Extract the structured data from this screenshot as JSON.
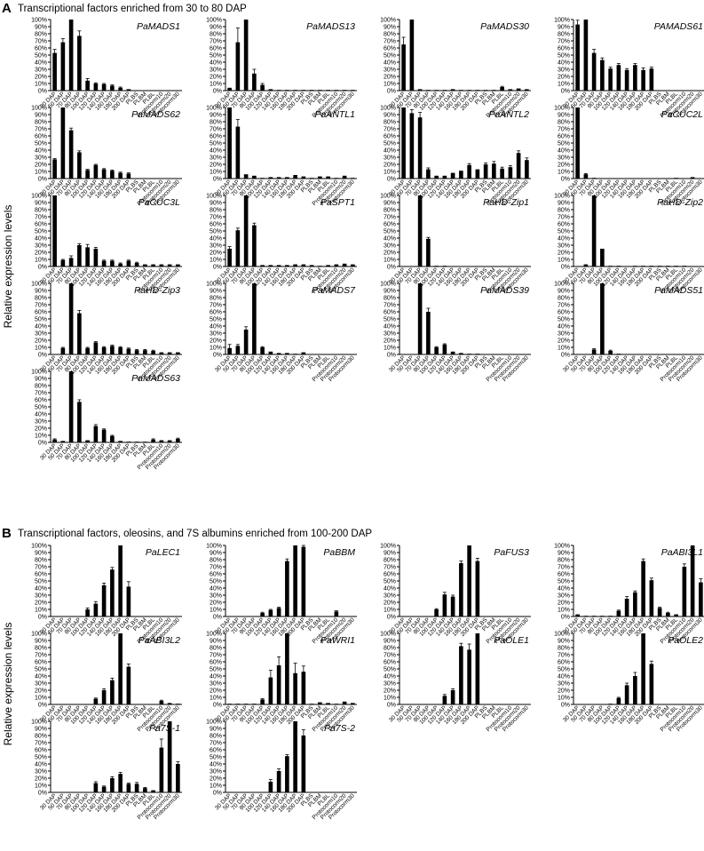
{
  "figure": {
    "y_axis_title": "Relative expression levels",
    "categories": [
      "30 DAP",
      "50 DAP",
      "70 DAP",
      "80 DAP",
      "100 DAP",
      "120 DAP",
      "140 DAP",
      "160 DAP",
      "180 DAP",
      "200 DAP",
      "PLBS",
      "PLBM",
      "PLBL",
      "Protocorm10",
      "Protocorm20",
      "Protocorm30"
    ],
    "y_ticks": [
      "0%",
      "10%",
      "20%",
      "30%",
      "40%",
      "50%",
      "60%",
      "70%",
      "80%",
      "90%",
      "100%"
    ],
    "ylim": [
      0,
      100
    ],
    "panels": [
      {
        "letter": "A",
        "title": "Transcriptional factors enriched from 30 to 80 DAP"
      },
      {
        "letter": "B",
        "title": "Transcriptional factors, oleosins, and 7S albumins enriched from 100-200 DAP"
      }
    ]
  },
  "chart_data": [
    {
      "type": "bar",
      "panel": "A",
      "title": "PaMADS1",
      "ylim": [
        0,
        100
      ],
      "values": [
        53,
        68,
        100,
        77,
        14,
        10,
        9,
        7,
        4,
        2,
        0,
        0,
        0,
        0,
        0,
        0
      ],
      "errors": [
        5,
        5,
        0,
        7,
        3,
        1,
        1,
        1,
        1,
        0,
        0,
        0,
        0,
        0,
        0,
        0
      ]
    },
    {
      "type": "bar",
      "panel": "A",
      "title": "PaMADS13",
      "ylim": [
        0,
        100
      ],
      "values": [
        4,
        68,
        100,
        24,
        8,
        2,
        1,
        1,
        1,
        1,
        1,
        1,
        1,
        1,
        1,
        1
      ],
      "errors": [
        0,
        20,
        0,
        6,
        2,
        0,
        0,
        0,
        0,
        0,
        0,
        0,
        0,
        0,
        0,
        0
      ]
    },
    {
      "type": "bar",
      "panel": "A",
      "title": "PaMADS30",
      "ylim": [
        0,
        100
      ],
      "values": [
        65,
        100,
        2,
        1,
        1,
        1,
        2,
        1,
        1,
        1,
        1,
        1,
        5,
        2,
        3,
        2
      ],
      "errors": [
        10,
        0,
        0,
        0,
        0,
        0,
        0,
        0,
        0,
        0,
        0,
        0,
        1,
        0,
        0,
        0
      ]
    },
    {
      "type": "bar",
      "panel": "A",
      "title": "PAMADS61",
      "ylim": [
        0,
        100
      ],
      "values": [
        93,
        100,
        53,
        43,
        31,
        36,
        29,
        36,
        29,
        31,
        0,
        0,
        0,
        0,
        0,
        0
      ],
      "errors": [
        6,
        0,
        5,
        3,
        2,
        2,
        2,
        2,
        3,
        2,
        0,
        0,
        0,
        0,
        0,
        0
      ]
    },
    {
      "type": "bar",
      "panel": "A",
      "title": "PaMADS62",
      "ylim": [
        0,
        100
      ],
      "values": [
        27,
        100,
        68,
        37,
        12,
        19,
        13,
        11,
        8,
        7,
        0,
        0,
        0,
        0,
        0,
        0
      ],
      "errors": [
        1,
        0,
        3,
        2,
        1,
        1,
        1,
        1,
        1,
        1,
        0,
        0,
        0,
        0,
        0,
        0
      ]
    },
    {
      "type": "bar",
      "panel": "A",
      "title": "PaANTL1",
      "ylim": [
        0,
        100
      ],
      "values": [
        100,
        73,
        6,
        4,
        1,
        2,
        2,
        2,
        5,
        3,
        1,
        3,
        3,
        1,
        4,
        1
      ],
      "errors": [
        0,
        10,
        0,
        0,
        0,
        0,
        0,
        0,
        0,
        0,
        0,
        0,
        0,
        0,
        0,
        0
      ]
    },
    {
      "type": "bar",
      "panel": "A",
      "title": "PaANTL2",
      "ylim": [
        0,
        100
      ],
      "values": [
        100,
        92,
        86,
        13,
        4,
        4,
        8,
        11,
        19,
        13,
        20,
        21,
        14,
        16,
        36,
        26
      ],
      "errors": [
        0,
        5,
        7,
        2,
        0,
        0,
        0,
        0,
        2,
        0,
        2,
        3,
        2,
        2,
        3,
        3
      ]
    },
    {
      "type": "bar",
      "panel": "A",
      "title": "PaCUC2L",
      "ylim": [
        0,
        100
      ],
      "values": [
        100,
        6,
        1,
        0,
        0,
        0,
        0,
        0,
        0,
        0,
        0,
        0,
        1,
        0,
        2,
        0
      ],
      "errors": [
        0,
        1,
        0,
        0,
        0,
        0,
        0,
        0,
        0,
        0,
        0,
        0,
        0,
        0,
        0,
        0
      ]
    },
    {
      "type": "bar",
      "panel": "A",
      "title": "PaCUC3L",
      "ylim": [
        0,
        100
      ],
      "values": [
        100,
        9,
        12,
        30,
        27,
        25,
        8,
        8,
        4,
        8,
        5,
        3,
        3,
        3,
        3,
        3
      ],
      "errors": [
        0,
        1,
        3,
        2,
        4,
        2,
        1,
        1,
        1,
        1,
        1,
        0,
        0,
        0,
        0,
        0
      ]
    },
    {
      "type": "bar",
      "panel": "A",
      "title": "PaSPT1",
      "ylim": [
        0,
        100
      ],
      "values": [
        25,
        51,
        100,
        58,
        2,
        2,
        2,
        2,
        3,
        3,
        2,
        1,
        2,
        3,
        4,
        3
      ],
      "errors": [
        3,
        3,
        0,
        3,
        0,
        0,
        0,
        0,
        0,
        0,
        0,
        0,
        0,
        0,
        0,
        0
      ]
    },
    {
      "type": "bar",
      "panel": "A",
      "title": "PaHD-Zip1",
      "ylim": [
        0,
        100
      ],
      "values": [
        0,
        0,
        100,
        39,
        1,
        1,
        0,
        0,
        0,
        0,
        0,
        0,
        0,
        0,
        0,
        0
      ],
      "errors": [
        0,
        0,
        0,
        2,
        0,
        0,
        0,
        0,
        0,
        0,
        0,
        0,
        0,
        0,
        0,
        0
      ]
    },
    {
      "type": "bar",
      "panel": "A",
      "title": "PaHD-Zip2",
      "ylim": [
        0,
        100
      ],
      "values": [
        0,
        3,
        100,
        25,
        1,
        1,
        0,
        1,
        1,
        1,
        1,
        1,
        1,
        1,
        0,
        0
      ],
      "errors": [
        0,
        0,
        0,
        0,
        0,
        0,
        0,
        0,
        0,
        0,
        0,
        0,
        0,
        0,
        0,
        0
      ]
    },
    {
      "type": "bar",
      "panel": "A",
      "title": "PaHD-Zip3",
      "ylim": [
        0,
        100
      ],
      "values": [
        0,
        9,
        100,
        58,
        9,
        17,
        10,
        12,
        10,
        8,
        6,
        6,
        5,
        3,
        3,
        3
      ],
      "errors": [
        0,
        1,
        0,
        4,
        1,
        1,
        1,
        1,
        1,
        1,
        1,
        1,
        1,
        0,
        0,
        0
      ]
    },
    {
      "type": "bar",
      "panel": "A",
      "title": "PaMADS7",
      "ylim": [
        0,
        100
      ],
      "values": [
        9,
        12,
        35,
        100,
        10,
        4,
        2,
        2,
        1,
        3,
        0,
        0,
        0,
        0,
        0,
        0
      ],
      "errors": [
        5,
        2,
        4,
        0,
        1,
        0,
        0,
        0,
        0,
        0,
        0,
        0,
        0,
        0,
        0,
        0
      ]
    },
    {
      "type": "bar",
      "panel": "A",
      "title": "PaMADS39",
      "ylim": [
        0,
        100
      ],
      "values": [
        0,
        0,
        100,
        60,
        10,
        14,
        4,
        2,
        1,
        1,
        0,
        0,
        0,
        0,
        0,
        0
      ],
      "errors": [
        0,
        0,
        0,
        5,
        1,
        1,
        0,
        0,
        0,
        0,
        0,
        0,
        0,
        0,
        0,
        0
      ]
    },
    {
      "type": "bar",
      "panel": "A",
      "title": "PaMADS51",
      "ylim": [
        0,
        100
      ],
      "values": [
        0,
        0,
        7,
        100,
        5,
        1,
        0,
        0,
        0,
        0,
        0,
        0,
        0,
        0,
        0,
        0
      ],
      "errors": [
        0,
        0,
        1,
        0,
        1,
        0,
        0,
        0,
        0,
        0,
        0,
        0,
        0,
        0,
        0,
        0
      ]
    },
    {
      "type": "bar",
      "panel": "A",
      "title": "PaMADS63",
      "ylim": [
        0,
        100
      ],
      "values": [
        4,
        2,
        100,
        57,
        3,
        23,
        18,
        9,
        2,
        1,
        1,
        1,
        4,
        3,
        3,
        5
      ],
      "errors": [
        1,
        0,
        0,
        3,
        0,
        2,
        1,
        1,
        0,
        0,
        0,
        0,
        1,
        0,
        0,
        1
      ]
    },
    {
      "type": "bar",
      "panel": "B",
      "title": "PaLEC1",
      "ylim": [
        0,
        100
      ],
      "values": [
        0,
        0,
        0,
        0,
        10,
        18,
        44,
        66,
        100,
        42,
        0,
        0,
        0,
        0,
        0,
        0
      ],
      "errors": [
        0,
        0,
        0,
        0,
        2,
        3,
        3,
        3,
        0,
        7,
        0,
        0,
        0,
        0,
        0,
        0
      ]
    },
    {
      "type": "bar",
      "panel": "B",
      "title": "PaBBM",
      "ylim": [
        0,
        100
      ],
      "values": [
        0,
        0,
        0,
        0,
        5,
        9,
        12,
        78,
        100,
        98,
        0,
        0,
        0,
        7,
        0,
        0
      ],
      "errors": [
        0,
        0,
        0,
        0,
        1,
        1,
        1,
        3,
        0,
        2,
        0,
        0,
        0,
        1,
        0,
        0
      ]
    },
    {
      "type": "bar",
      "panel": "B",
      "title": "PaFUS3",
      "ylim": [
        0,
        100
      ],
      "values": [
        0,
        0,
        0,
        0,
        10,
        31,
        28,
        75,
        100,
        78,
        0,
        0,
        0,
        0,
        0,
        0
      ],
      "errors": [
        0,
        0,
        0,
        0,
        1,
        3,
        2,
        3,
        0,
        4,
        0,
        0,
        0,
        0,
        0,
        0
      ]
    },
    {
      "type": "bar",
      "panel": "B",
      "title": "PaABI3L1",
      "ylim": [
        0,
        100
      ],
      "values": [
        3,
        1,
        1,
        1,
        1,
        8,
        25,
        34,
        78,
        51,
        12,
        5,
        3,
        70,
        100,
        48
      ],
      "errors": [
        0,
        0,
        0,
        0,
        0,
        1,
        3,
        2,
        3,
        3,
        1,
        1,
        0,
        4,
        0,
        5
      ]
    },
    {
      "type": "bar",
      "panel": "B",
      "title": "PaABI3L2",
      "ylim": [
        0,
        100
      ],
      "values": [
        0,
        0,
        0,
        0,
        0,
        8,
        20,
        34,
        100,
        53,
        0,
        0,
        0,
        5,
        2,
        1
      ],
      "errors": [
        0,
        0,
        0,
        0,
        0,
        1,
        2,
        3,
        0,
        4,
        0,
        0,
        0,
        1,
        0,
        0
      ]
    },
    {
      "type": "bar",
      "panel": "B",
      "title": "PaWRI1",
      "ylim": [
        0,
        100
      ],
      "values": [
        1,
        1,
        1,
        1,
        7,
        38,
        55,
        100,
        44,
        46,
        1,
        3,
        2,
        1,
        4,
        2
      ],
      "errors": [
        0,
        0,
        0,
        0,
        1,
        10,
        12,
        0,
        14,
        8,
        0,
        0,
        0,
        0,
        0,
        0
      ]
    },
    {
      "type": "bar",
      "panel": "B",
      "title": "PaOLE1",
      "ylim": [
        0,
        100
      ],
      "values": [
        0,
        0,
        0,
        0,
        0,
        12,
        20,
        82,
        77,
        100,
        0,
        0,
        0,
        0,
        0,
        0
      ],
      "errors": [
        0,
        0,
        0,
        0,
        0,
        2,
        2,
        4,
        8,
        0,
        0,
        0,
        0,
        0,
        0,
        0
      ]
    },
    {
      "type": "bar",
      "panel": "B",
      "title": "PaOLE2",
      "ylim": [
        0,
        100
      ],
      "values": [
        0,
        0,
        0,
        0,
        1,
        9,
        27,
        40,
        100,
        57,
        0,
        0,
        0,
        0,
        0,
        0
      ],
      "errors": [
        0,
        0,
        0,
        0,
        0,
        1,
        3,
        5,
        0,
        4,
        0,
        0,
        0,
        0,
        0,
        0
      ]
    },
    {
      "type": "bar",
      "panel": "B",
      "title": "Pa7S-1",
      "ylim": [
        0,
        100
      ],
      "values": [
        0,
        0,
        0,
        0,
        0,
        13,
        8,
        20,
        26,
        12,
        12,
        6,
        3,
        63,
        100,
        40
      ],
      "errors": [
        0,
        0,
        0,
        0,
        0,
        2,
        1,
        2,
        2,
        1,
        2,
        1,
        0,
        12,
        0,
        3
      ]
    },
    {
      "type": "bar",
      "panel": "B",
      "title": "Pa7S-2",
      "ylim": [
        0,
        100
      ],
      "values": [
        0,
        0,
        0,
        0,
        0,
        15,
        30,
        51,
        100,
        80,
        0,
        0,
        0,
        0,
        0,
        0
      ],
      "errors": [
        0,
        0,
        0,
        0,
        0,
        3,
        3,
        2,
        0,
        8,
        0,
        0,
        0,
        0,
        0,
        0
      ]
    }
  ]
}
